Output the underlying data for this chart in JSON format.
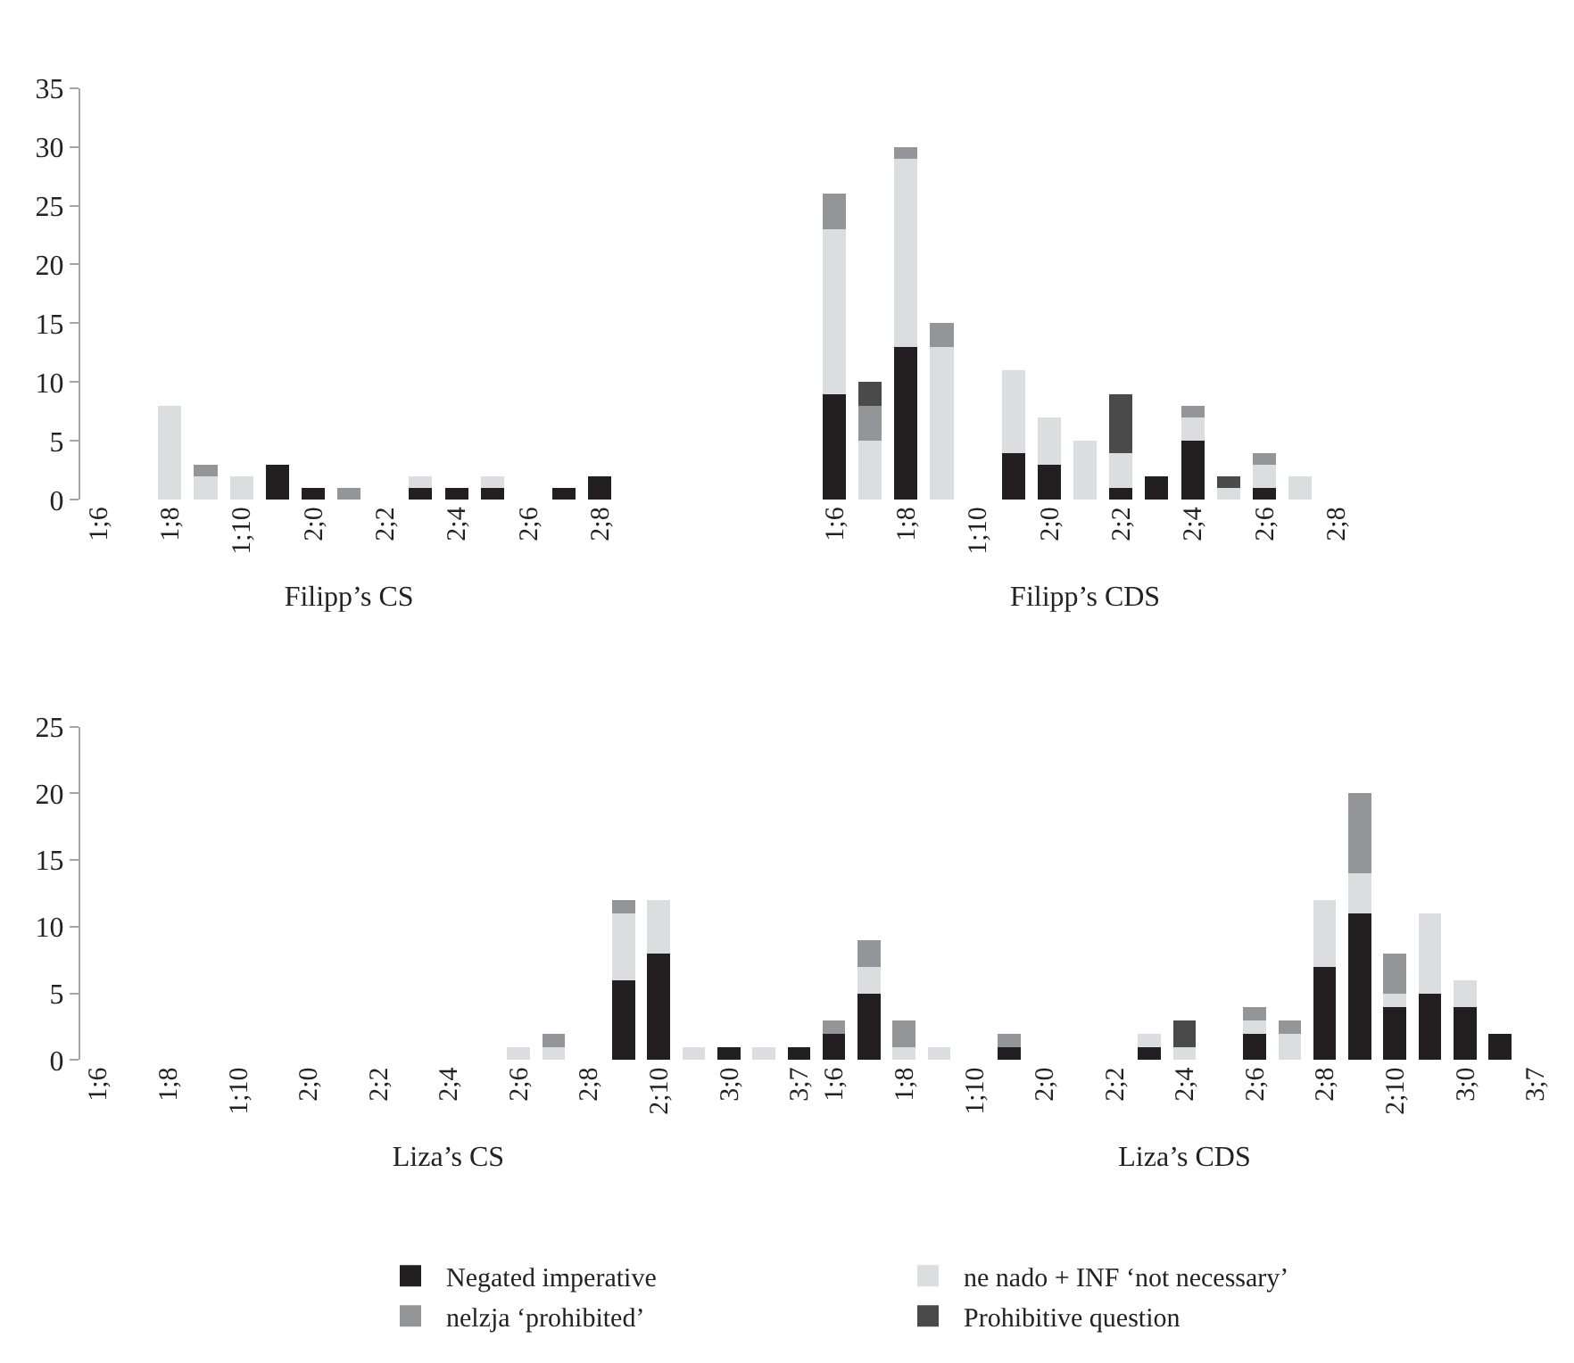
{
  "chart_data": [
    {
      "type": "bar",
      "stacked": true,
      "xlabel": "Filipp’s CS",
      "legend": "bottom",
      "ylim": [
        0,
        35
      ],
      "yticks": [
        0,
        5,
        10,
        15,
        20,
        25,
        30,
        35
      ],
      "categories": [
        "1;6",
        null,
        "1;8",
        null,
        "1;10",
        null,
        "2;0",
        null,
        "2;2",
        null,
        "2;4",
        null,
        "2;6",
        null,
        "2;8"
      ],
      "series": [
        {
          "name": "Negated imperative",
          "color": "#231f20",
          "values": [
            0,
            0,
            0,
            0,
            0,
            3,
            1,
            0,
            0,
            1,
            1,
            1,
            0,
            1,
            2
          ]
        },
        {
          "name": "ne nado + INF ‘not necessary’",
          "color": "#dcdddf",
          "values": [
            0,
            0,
            8,
            2,
            2,
            0,
            0,
            0,
            0,
            1,
            0,
            1,
            0,
            0,
            0
          ]
        },
        {
          "name": "nelzja ‘prohibited’",
          "color": "#939598",
          "values": [
            0,
            0,
            0,
            1,
            0,
            0,
            0,
            1,
            0,
            0,
            0,
            0,
            0,
            0,
            0
          ]
        },
        {
          "name": "Prohibitive question",
          "color": "#4a4a4a",
          "values": [
            0,
            0,
            0,
            0,
            0,
            0,
            0,
            0,
            0,
            0,
            0,
            0,
            0,
            0,
            0
          ]
        }
      ]
    },
    {
      "type": "bar",
      "stacked": true,
      "xlabel": "Filipp’s CDS",
      "ylim": [
        0,
        35
      ],
      "yticks": [
        0,
        5,
        10,
        15,
        20,
        25,
        30,
        35
      ],
      "tick_labels": "x",
      "categories": [
        "1;6",
        null,
        "1;8",
        null,
        "1;10",
        null,
        "2;0",
        null,
        "2;2",
        null,
        "2;4",
        null,
        "2;6",
        null,
        "2;8"
      ],
      "series": [
        {
          "color": "#231f20",
          "values": [
            9,
            0,
            13,
            0,
            0,
            4,
            3,
            0,
            1,
            2,
            5,
            0,
            1,
            0,
            0
          ]
        },
        {
          "color": "#dcdddf",
          "values": [
            14,
            5,
            16,
            13,
            0,
            7,
            4,
            5,
            3,
            0,
            2,
            1,
            2,
            2,
            0
          ]
        },
        {
          "color": "#939598",
          "values": [
            3,
            3,
            1,
            2,
            0,
            0,
            0,
            0,
            0,
            0,
            1,
            0,
            1,
            0,
            0
          ]
        },
        {
          "color": "#4a4a4a",
          "values": [
            0,
            2,
            0,
            0,
            0,
            0,
            0,
            0,
            5,
            0,
            0,
            1,
            0,
            0,
            0
          ]
        }
      ]
    },
    {
      "type": "bar",
      "stacked": true,
      "xlabel": "Liza’s CS",
      "ylim": [
        0,
        25
      ],
      "yticks": [
        0,
        5,
        10,
        15,
        20,
        25
      ],
      "categories": [
        "1;6",
        null,
        "1;8",
        null,
        "1;10",
        null,
        "2;0",
        null,
        "2;2",
        null,
        "2;4",
        null,
        "2;6",
        null,
        "2;8",
        null,
        "2;10",
        null,
        "3;0",
        null,
        "3;7"
      ],
      "series": [
        {
          "color": "#231f20",
          "values": [
            0,
            0,
            0,
            0,
            0,
            0,
            0,
            0,
            0,
            0,
            0,
            0,
            0,
            0,
            0,
            6,
            8,
            0,
            1,
            0,
            1
          ]
        },
        {
          "color": "#dcdddf",
          "values": [
            0,
            0,
            0,
            0,
            0,
            0,
            0,
            0,
            0,
            0,
            0,
            0,
            1,
            1,
            0,
            5,
            4,
            1,
            0,
            1,
            0
          ]
        },
        {
          "color": "#939598",
          "values": [
            0,
            0,
            0,
            0,
            0,
            0,
            0,
            0,
            0,
            0,
            0,
            0,
            0,
            1,
            0,
            1,
            0,
            0,
            0,
            0,
            0
          ]
        }
      ]
    },
    {
      "type": "bar",
      "stacked": true,
      "xlabel": "Liza’s CDS",
      "ylim": [
        0,
        25
      ],
      "yticks": [
        0,
        5,
        10,
        15,
        20,
        25
      ],
      "tick_labels": "x",
      "categories": [
        "1;6",
        null,
        "1;8",
        null,
        "1;10",
        null,
        "2;0",
        null,
        "2;2",
        null,
        "2;4",
        null,
        "2;6",
        null,
        "2;8",
        null,
        "2;10",
        null,
        "3;0",
        null,
        "3;7"
      ],
      "series": [
        {
          "color": "#231f20",
          "values": [
            2,
            5,
            0,
            0,
            0,
            1,
            0,
            0,
            0,
            1,
            0,
            0,
            2,
            0,
            7,
            11,
            4,
            5,
            4,
            2,
            0
          ]
        },
        {
          "color": "#dcdddf",
          "values": [
            0,
            2,
            1,
            1,
            0,
            0,
            0,
            0,
            0,
            1,
            1,
            0,
            1,
            2,
            5,
            3,
            1,
            6,
            2,
            0,
            0
          ]
        },
        {
          "color": "#939598",
          "values": [
            1,
            2,
            2,
            0,
            0,
            1,
            0,
            0,
            0,
            0,
            0,
            0,
            1,
            1,
            0,
            6,
            3,
            0,
            0,
            0,
            0
          ]
        },
        {
          "color": "#4a4a4a",
          "values": [
            0,
            0,
            0,
            0,
            0,
            0,
            0,
            0,
            0,
            0,
            2,
            0,
            0,
            0,
            0,
            0,
            0,
            0,
            0,
            0,
            0
          ]
        }
      ]
    }
  ]
}
